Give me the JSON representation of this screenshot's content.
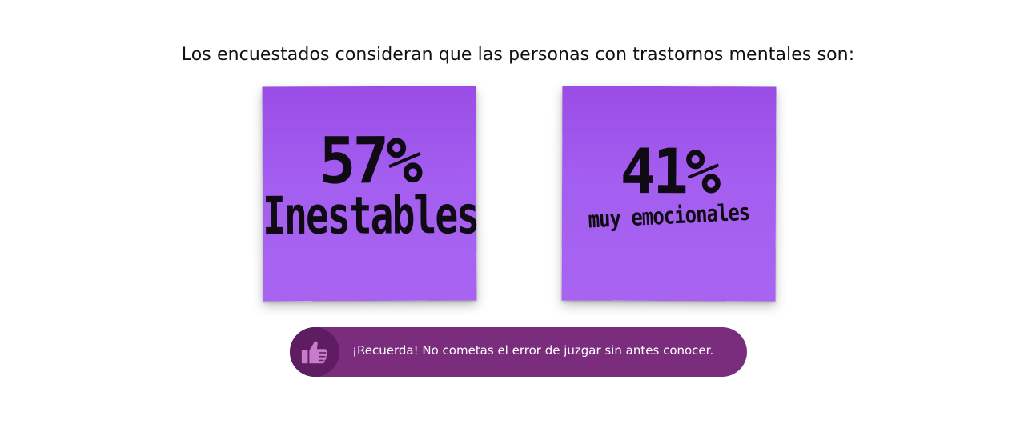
{
  "headline": "Los encuestados consideran que las personas con trastornos mentales son:",
  "notes": [
    {
      "percent": "57%",
      "label": "Inestables"
    },
    {
      "percent": "41%",
      "label": "muy emocionales"
    }
  ],
  "banner": {
    "icon": "thumbs-up-icon",
    "text": "¡Recuerda! No cometas el error de juzgar sin antes conocer."
  },
  "colors": {
    "note_purple": "#a45ef0",
    "banner_purple": "#7a2d7c",
    "banner_icon_circle": "#5e1d61",
    "ink": "#0f0a14"
  }
}
